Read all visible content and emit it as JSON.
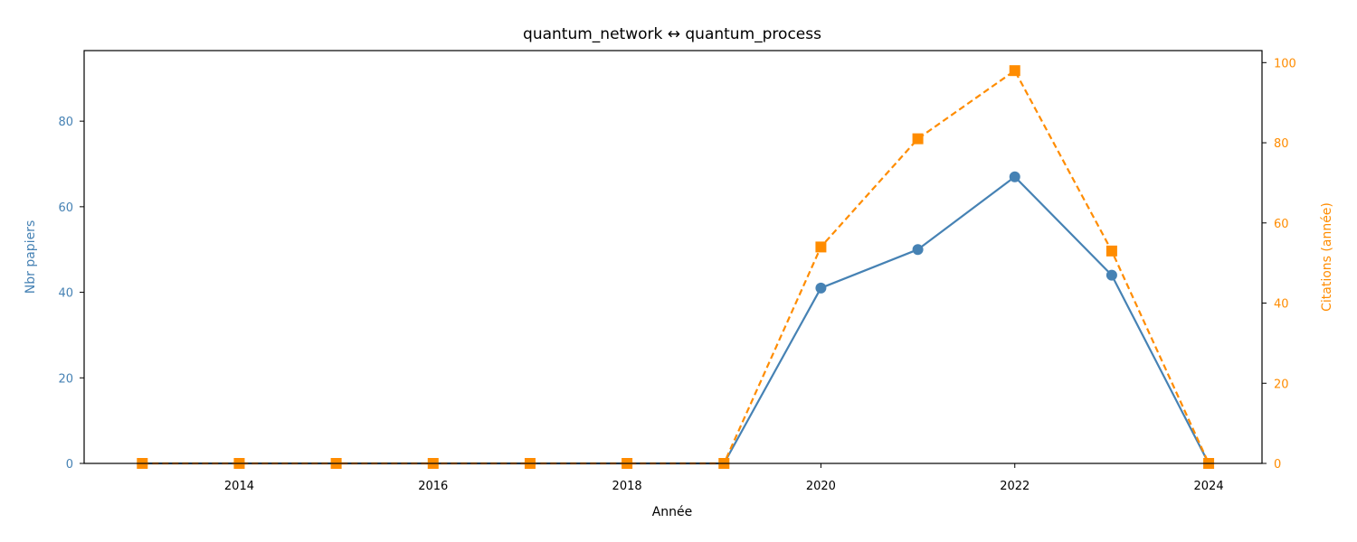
{
  "chart_data": {
    "type": "line",
    "title": "quantum_network  ↔  quantum_process",
    "xlabel": "Année",
    "ylabel_left": "Nbr papiers",
    "ylabel_right": "Citations (année)",
    "x": [
      2013,
      2014,
      2015,
      2016,
      2017,
      2018,
      2019,
      2020,
      2021,
      2022,
      2023,
      2024
    ],
    "xlim": [
      2012.4,
      2024.55
    ],
    "xticks": [
      2014,
      2016,
      2018,
      2020,
      2022,
      2024
    ],
    "ylim_left": [
      0,
      96.5
    ],
    "yticks_left": [
      0,
      20,
      40,
      60,
      80
    ],
    "ylim_right": [
      0,
      103
    ],
    "yticks_right": [
      0,
      20,
      40,
      60,
      80,
      100
    ],
    "grid": false,
    "series": [
      {
        "axis": "left",
        "color": "#4682b4",
        "marker": "circle",
        "linestyle": "solid",
        "values": [
          0,
          0,
          0,
          0,
          0,
          0,
          0,
          41,
          50,
          67,
          44,
          0
        ]
      },
      {
        "axis": "right",
        "color": "#ff8c00",
        "marker": "square",
        "linestyle": "dashed",
        "values": [
          0,
          0,
          0,
          0,
          0,
          0,
          0,
          54,
          81,
          98,
          53,
          0
        ]
      }
    ]
  }
}
